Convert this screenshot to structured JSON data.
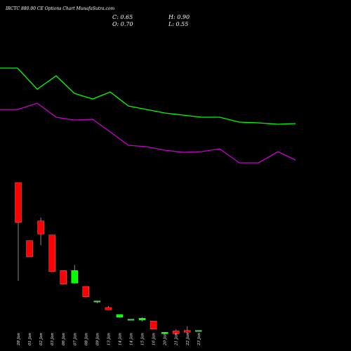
{
  "title": "IRCTC 880.00 CE Options Chart MunafaSutra.com",
  "ohlc": {
    "C": "C: 0.65",
    "H": "H: 0.90",
    "O": "O: 0.70",
    "L": "L: 0.55"
  },
  "colors": {
    "background": "#000000",
    "up": "#00ff00",
    "down": "#ff0000",
    "upper_line": "#00ff00",
    "lower_line": "#cc00cc",
    "wick": "#aaaaaa",
    "text": "#ffffff"
  },
  "chart_data": {
    "type": "candlestick",
    "title": "IRCTC 880.00 CE Options Chart MunafaSutra.com",
    "categories": [
      "28 Jan",
      "01 Jan",
      "02 Jan",
      "03 Jan",
      "06 Jan",
      "07 Jan",
      "08 Jan",
      "09 Jan",
      "13 Jan",
      "14 Jan",
      "14 Jan",
      "15 Jan",
      "16 Jan",
      "20 Jan",
      "21 Jan",
      "22 Jan",
      "23 Jan"
    ],
    "candles": [
      {
        "open": 21.0,
        "high": 21.0,
        "low": 0.0,
        "close": 12.5
      },
      {
        "open": 8.6,
        "high": 8.6,
        "low": 5.1,
        "close": 5.1
      },
      {
        "open": 12.8,
        "high": 13.5,
        "low": 7.6,
        "close": 10.0
      },
      {
        "open": 9.8,
        "high": 9.8,
        "low": 2.0,
        "close": 2.0
      },
      {
        "open": 2.2,
        "high": 2.2,
        "low": -0.7,
        "close": -0.7
      },
      {
        "open": -0.5,
        "high": 3.4,
        "low": -0.5,
        "close": 2.2
      },
      {
        "open": -1.2,
        "high": -1.2,
        "low": -3.5,
        "close": -3.4
      },
      {
        "open": -4.5,
        "high": -4.3,
        "low": -4.8,
        "close": -4.3
      },
      {
        "open": -5.7,
        "high": -5.4,
        "low": -6.2,
        "close": -6.2
      },
      {
        "open": -7.8,
        "high": -7.2,
        "low": -7.9,
        "close": -7.2
      },
      {
        "open": -8.2,
        "high": -8.2,
        "low": -8.2,
        "close": -8.2
      },
      {
        "open": -8.4,
        "high": -7.8,
        "low": -8.7,
        "close": -8.0
      },
      {
        "open": -8.6,
        "high": -8.6,
        "low": -10.3,
        "close": -10.3
      },
      {
        "open": -11.3,
        "high": -11.0,
        "low": -11.3,
        "close": -11.0
      },
      {
        "open": -10.7,
        "high": -10.4,
        "low": -11.5,
        "close": -11.3
      },
      {
        "open": -10.6,
        "high": -9.7,
        "low": -11.2,
        "close": -11.0
      },
      {
        "open": -10.6,
        "high": -10.6,
        "low": -10.6,
        "close": -10.6
      }
    ],
    "upper_line": {
      "x": [
        0,
        25,
        53,
        80,
        106,
        132,
        157,
        183,
        209,
        235,
        261,
        287,
        313,
        341,
        368,
        396,
        421
      ],
      "y": [
        97,
        97,
        127,
        108,
        133,
        141,
        131,
        151,
        156,
        161,
        164,
        167,
        167,
        174,
        175,
        177,
        176
      ]
    },
    "lower_line": {
      "x": [
        0,
        25,
        53,
        80,
        106,
        132,
        157,
        183,
        209,
        235,
        261,
        287,
        313,
        341,
        368,
        396,
        421
      ],
      "y": [
        156,
        156,
        147,
        167,
        171,
        170,
        188,
        207,
        209,
        214,
        217,
        216,
        212,
        232,
        232,
        216,
        228
      ]
    }
  }
}
